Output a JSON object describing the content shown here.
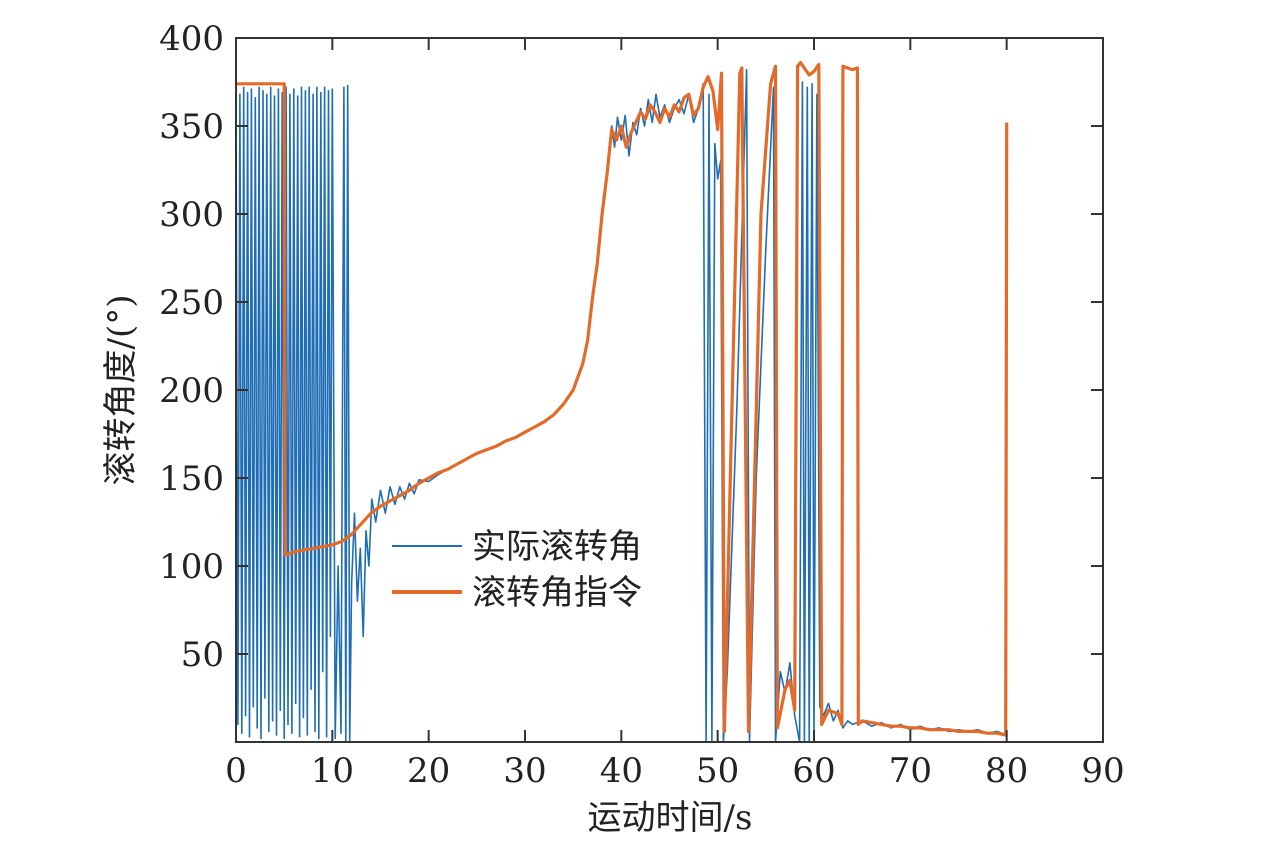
{
  "chart_data": {
    "type": "line",
    "title": "",
    "xlabel": "运动时间/s",
    "ylabel": "滚转角度/(°)",
    "xlim": [
      0,
      90
    ],
    "ylim": [
      0,
      400
    ],
    "x_ticks": [
      0,
      10,
      20,
      30,
      40,
      50,
      60,
      70,
      80,
      90
    ],
    "y_ticks": [
      50,
      100,
      150,
      200,
      250,
      300,
      350,
      400
    ],
    "x_tick_labels": [
      "0",
      "10",
      "20",
      "30",
      "40",
      "50",
      "60",
      "70",
      "80",
      "90"
    ],
    "y_tick_labels": [
      "50",
      "100",
      "150",
      "200",
      "250",
      "300",
      "350",
      "400"
    ],
    "grid": false,
    "legend_position": "center",
    "series": [
      {
        "name": "实际滚转角",
        "color": "#1f6db4",
        "points": [
          [
            0.0,
            370
          ],
          [
            0.2,
            10
          ],
          [
            0.4,
            368
          ],
          [
            0.6,
            5
          ],
          [
            0.8,
            372
          ],
          [
            1.0,
            15
          ],
          [
            1.2,
            369
          ],
          [
            1.4,
            3
          ],
          [
            1.6,
            371
          ],
          [
            1.8,
            20
          ],
          [
            2.0,
            366
          ],
          [
            2.2,
            8
          ],
          [
            2.4,
            372
          ],
          [
            2.6,
            2
          ],
          [
            2.8,
            370
          ],
          [
            3.0,
            25
          ],
          [
            3.2,
            368
          ],
          [
            3.4,
            6
          ],
          [
            3.6,
            372
          ],
          [
            3.8,
            12
          ],
          [
            4.0,
            367
          ],
          [
            4.2,
            4
          ],
          [
            4.4,
            371
          ],
          [
            4.6,
            18
          ],
          [
            4.8,
            369
          ],
          [
            5.0,
            2
          ],
          [
            5.2,
            372
          ],
          [
            5.4,
            10
          ],
          [
            5.6,
            368
          ],
          [
            5.8,
            5
          ],
          [
            6.0,
            371
          ],
          [
            6.2,
            22
          ],
          [
            6.4,
            367
          ],
          [
            6.6,
            3
          ],
          [
            6.8,
            372
          ],
          [
            7.0,
            14
          ],
          [
            7.2,
            370
          ],
          [
            7.4,
            4
          ],
          [
            7.6,
            372
          ],
          [
            7.8,
            30
          ],
          [
            8.0,
            368
          ],
          [
            8.2,
            6
          ],
          [
            8.4,
            372
          ],
          [
            8.6,
            2
          ],
          [
            8.8,
            369
          ],
          [
            9.0,
            40
          ],
          [
            9.2,
            372
          ],
          [
            9.4,
            3
          ],
          [
            9.6,
            370
          ],
          [
            9.8,
            60
          ],
          [
            10.0,
            371
          ],
          [
            10.3,
            2
          ],
          [
            10.6,
            100
          ],
          [
            10.9,
            5
          ],
          [
            11.2,
            372
          ],
          [
            11.4,
            0
          ],
          [
            11.6,
            373
          ],
          [
            11.8,
            0
          ],
          [
            12.0,
            90
          ],
          [
            12.3,
            130
          ],
          [
            12.6,
            80
          ],
          [
            12.9,
            110
          ],
          [
            13.2,
            60
          ],
          [
            13.5,
            120
          ],
          [
            13.8,
            100
          ],
          [
            14.1,
            138
          ],
          [
            14.5,
            125
          ],
          [
            15.0,
            143
          ],
          [
            15.5,
            130
          ],
          [
            16.0,
            145
          ],
          [
            16.5,
            135
          ],
          [
            17.0,
            145
          ],
          [
            17.5,
            138
          ],
          [
            18.0,
            147
          ],
          [
            18.5,
            141
          ],
          [
            19.0,
            149
          ],
          [
            20.0,
            148
          ],
          [
            21.0,
            152
          ],
          [
            22.0,
            155
          ],
          [
            23.0,
            158
          ],
          [
            24.0,
            161
          ],
          [
            25.0,
            164
          ],
          [
            26.0,
            166
          ],
          [
            27.0,
            168
          ],
          [
            28.0,
            171
          ],
          [
            29.0,
            173
          ],
          [
            30.0,
            176
          ],
          [
            31.0,
            179
          ],
          [
            32.0,
            182
          ],
          [
            33.0,
            186
          ],
          [
            34.0,
            192
          ],
          [
            35.0,
            200
          ],
          [
            36.0,
            215
          ],
          [
            36.5,
            228
          ],
          [
            37.0,
            250
          ],
          [
            37.5,
            275
          ],
          [
            38.0,
            298
          ],
          [
            38.3,
            315
          ],
          [
            38.6,
            330
          ],
          [
            39.0,
            350
          ],
          [
            39.3,
            338
          ],
          [
            39.6,
            355
          ],
          [
            40.0,
            342
          ],
          [
            40.4,
            356
          ],
          [
            40.8,
            333
          ],
          [
            41.2,
            352
          ],
          [
            41.6,
            345
          ],
          [
            42.0,
            360
          ],
          [
            42.4,
            350
          ],
          [
            42.8,
            365
          ],
          [
            43.2,
            352
          ],
          [
            43.6,
            368
          ],
          [
            44.0,
            355
          ],
          [
            44.5,
            362
          ],
          [
            45.0,
            352
          ],
          [
            45.5,
            360
          ],
          [
            46.0,
            365
          ],
          [
            46.5,
            357
          ],
          [
            47.0,
            368
          ],
          [
            47.5,
            352
          ],
          [
            48.0,
            360
          ],
          [
            48.5,
            374
          ],
          [
            48.8,
            0
          ],
          [
            49.1,
            368
          ],
          [
            49.4,
            0
          ],
          [
            49.7,
            340
          ],
          [
            50.0,
            320
          ],
          [
            50.3,
            330
          ],
          [
            50.6,
            0
          ],
          [
            51.0,
            40
          ],
          [
            52.0,
            190
          ],
          [
            53.0,
            382
          ],
          [
            53.3,
            0
          ],
          [
            54.0,
            150
          ],
          [
            55.0,
            280
          ],
          [
            55.8,
            372
          ],
          [
            56.0,
            0
          ],
          [
            56.5,
            40
          ],
          [
            57.0,
            28
          ],
          [
            57.5,
            45
          ],
          [
            58.0,
            15
          ],
          [
            58.5,
            0
          ],
          [
            58.8,
            375
          ],
          [
            59.0,
            0
          ],
          [
            59.3,
            372
          ],
          [
            59.5,
            0
          ],
          [
            59.8,
            374
          ],
          [
            60.0,
            0
          ],
          [
            60.3,
            368
          ],
          [
            60.6,
            20
          ],
          [
            61.0,
            15
          ],
          [
            61.5,
            22
          ],
          [
            62.0,
            12
          ],
          [
            62.5,
            18
          ],
          [
            63.0,
            8
          ],
          [
            63.5,
            12
          ],
          [
            64.0,
            10
          ],
          [
            65.0,
            12
          ],
          [
            66.0,
            9
          ],
          [
            67.0,
            11
          ],
          [
            68.0,
            8
          ],
          [
            69.0,
            10
          ],
          [
            70.0,
            7
          ],
          [
            71.0,
            9
          ],
          [
            72.0,
            7
          ],
          [
            73.0,
            8
          ],
          [
            74.0,
            6
          ],
          [
            75.0,
            7
          ],
          [
            76.0,
            6
          ],
          [
            77.0,
            7
          ],
          [
            78.0,
            5
          ],
          [
            79.0,
            6
          ],
          [
            80.0,
            4
          ]
        ]
      },
      {
        "name": "滚转角指令",
        "color": "#e36a28",
        "points": [
          [
            0.0,
            374
          ],
          [
            5.0,
            374
          ],
          [
            5.1,
            106
          ],
          [
            6.0,
            108
          ],
          [
            7.0,
            109
          ],
          [
            8.0,
            110
          ],
          [
            9.0,
            111
          ],
          [
            10.0,
            112
          ],
          [
            11.0,
            114
          ],
          [
            12.0,
            118
          ],
          [
            13.0,
            124
          ],
          [
            14.0,
            130
          ],
          [
            15.0,
            134
          ],
          [
            16.0,
            137
          ],
          [
            17.0,
            140
          ],
          [
            18.0,
            143
          ],
          [
            19.0,
            147
          ],
          [
            20.0,
            150
          ],
          [
            21.0,
            153
          ],
          [
            22.0,
            155
          ],
          [
            23.0,
            158
          ],
          [
            24.0,
            161
          ],
          [
            25.0,
            164
          ],
          [
            26.0,
            166
          ],
          [
            27.0,
            168
          ],
          [
            28.0,
            171
          ],
          [
            29.0,
            173
          ],
          [
            30.0,
            176
          ],
          [
            31.0,
            179
          ],
          [
            32.0,
            182
          ],
          [
            33.0,
            186
          ],
          [
            34.0,
            192
          ],
          [
            35.0,
            200
          ],
          [
            36.0,
            215
          ],
          [
            36.5,
            228
          ],
          [
            37.0,
            252
          ],
          [
            37.5,
            272
          ],
          [
            38.0,
            300
          ],
          [
            38.5,
            322
          ],
          [
            39.0,
            348
          ],
          [
            39.5,
            342
          ],
          [
            40.0,
            350
          ],
          [
            40.5,
            338
          ],
          [
            41.0,
            346
          ],
          [
            41.5,
            352
          ],
          [
            42.0,
            358
          ],
          [
            42.5,
            354
          ],
          [
            43.0,
            362
          ],
          [
            43.5,
            358
          ],
          [
            44.0,
            352
          ],
          [
            44.5,
            360
          ],
          [
            45.0,
            355
          ],
          [
            45.5,
            362
          ],
          [
            46.0,
            358
          ],
          [
            46.5,
            366
          ],
          [
            47.0,
            368
          ],
          [
            47.5,
            356
          ],
          [
            48.0,
            360
          ],
          [
            48.5,
            372
          ],
          [
            49.0,
            378
          ],
          [
            49.5,
            370
          ],
          [
            50.0,
            348
          ],
          [
            50.4,
            380
          ],
          [
            50.7,
            6
          ],
          [
            52.3,
            380
          ],
          [
            52.5,
            383
          ],
          [
            53.2,
            6
          ],
          [
            54.5,
            300
          ],
          [
            55.5,
            374
          ],
          [
            56.0,
            384
          ],
          [
            56.2,
            8
          ],
          [
            57.0,
            30
          ],
          [
            57.5,
            35
          ],
          [
            58.0,
            18
          ],
          [
            58.3,
            384
          ],
          [
            58.6,
            386
          ],
          [
            59.5,
            379
          ],
          [
            60.0,
            381
          ],
          [
            60.5,
            385
          ],
          [
            60.8,
            10
          ],
          [
            61.5,
            18
          ],
          [
            62.5,
            16
          ],
          [
            62.9,
            10
          ],
          [
            63.0,
            384
          ],
          [
            64.0,
            382
          ],
          [
            64.5,
            383
          ],
          [
            64.6,
            10
          ],
          [
            65.0,
            12
          ],
          [
            66.0,
            11
          ],
          [
            67.0,
            10
          ],
          [
            68.0,
            9
          ],
          [
            69.0,
            9
          ],
          [
            70.0,
            8
          ],
          [
            71.0,
            8
          ],
          [
            72.0,
            7
          ],
          [
            73.0,
            7
          ],
          [
            74.0,
            7
          ],
          [
            75.0,
            6
          ],
          [
            76.0,
            6
          ],
          [
            77.0,
            6
          ],
          [
            78.0,
            5
          ],
          [
            79.0,
            5
          ],
          [
            79.9,
            4
          ],
          [
            80.0,
            352
          ]
        ]
      }
    ]
  }
}
